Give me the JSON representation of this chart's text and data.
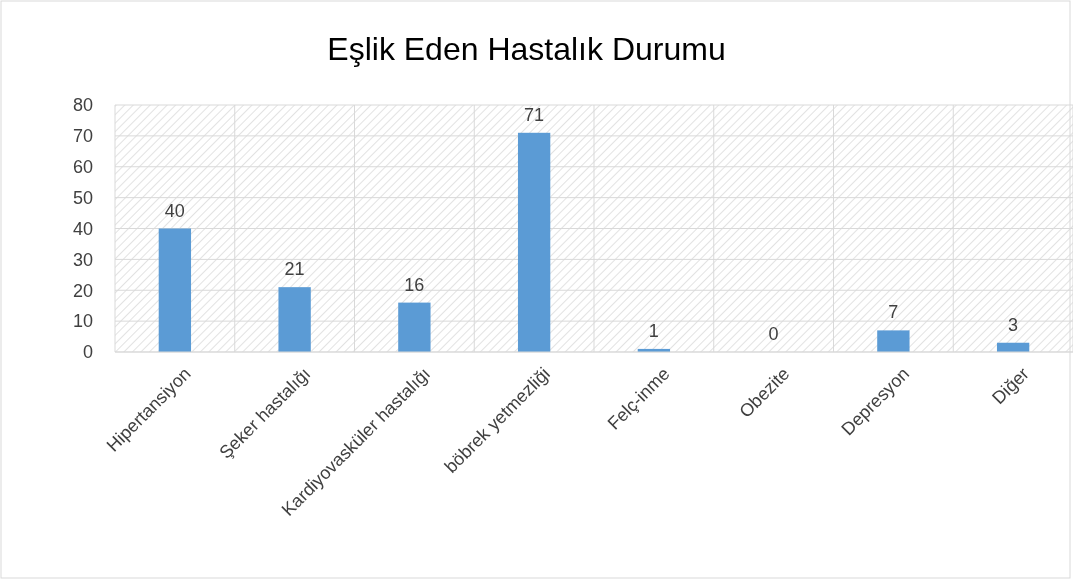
{
  "chart_data": {
    "type": "bar",
    "title": "Eşlik Eden Hastalık Durumu",
    "categories": [
      "Hipertansiyon",
      "Şeker hastalığı",
      "Kardiyovasküler hastalığı",
      "böbrek yetmezliği",
      "Felç-inme",
      "Obezite",
      "Depresyon",
      "Diğer"
    ],
    "values": [
      40,
      21,
      16,
      71,
      1,
      0,
      7,
      3
    ],
    "color": "#5b9bd5",
    "ylim": [
      0,
      80
    ],
    "yticks": [
      0,
      10,
      20,
      30,
      40,
      50,
      60,
      70,
      80
    ],
    "grid": true,
    "data_labels": true
  }
}
